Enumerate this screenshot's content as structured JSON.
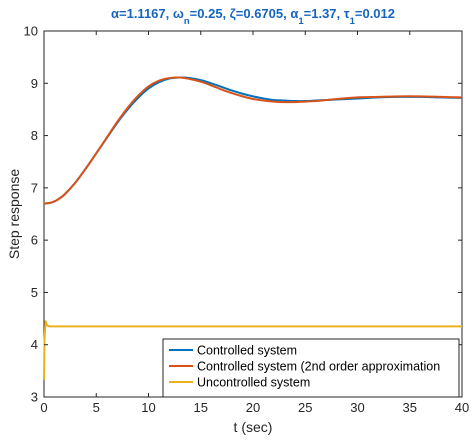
{
  "chart_data": {
    "type": "line",
    "title": "α=1.1167, ωn=0.25, ζ=0.6705, α1=1.37, τ1=0.012",
    "xlabel": "t (sec)",
    "ylabel": "Step response",
    "xlim": [
      0,
      40
    ],
    "ylim": [
      3,
      10
    ],
    "xticks": [
      0,
      5,
      10,
      15,
      20,
      25,
      30,
      35,
      40
    ],
    "yticks": [
      3,
      4,
      5,
      6,
      7,
      8,
      9,
      10
    ],
    "grid": false,
    "legend_position": "bottom-right",
    "series": [
      {
        "name": "Controlled system",
        "color": "#0072bd",
        "x": [
          0,
          0.5,
          1,
          1.5,
          2,
          3,
          4,
          5,
          6,
          7,
          8,
          9,
          10,
          11,
          12,
          13,
          14,
          15,
          16,
          17,
          18,
          19,
          20,
          21,
          22,
          23,
          24,
          25,
          26,
          27,
          28,
          30,
          32,
          34,
          36,
          38,
          40
        ],
        "values": [
          6.7,
          6.71,
          6.74,
          6.8,
          6.88,
          7.1,
          7.37,
          7.66,
          7.95,
          8.24,
          8.5,
          8.72,
          8.9,
          9.02,
          9.09,
          9.11,
          9.1,
          9.06,
          9.0,
          8.93,
          8.86,
          8.8,
          8.75,
          8.71,
          8.68,
          8.67,
          8.66,
          8.66,
          8.67,
          8.68,
          8.69,
          8.71,
          8.73,
          8.74,
          8.74,
          8.73,
          8.72
        ]
      },
      {
        "name": "Controlled system (2nd order approximation",
        "color": "#d95319",
        "x": [
          0,
          0.5,
          1,
          1.5,
          2,
          3,
          4,
          5,
          6,
          7,
          8,
          9,
          10,
          11,
          12,
          13,
          14,
          15,
          16,
          17,
          18,
          19,
          20,
          21,
          22,
          23,
          24,
          25,
          26,
          27,
          28,
          30,
          32,
          34,
          36,
          38,
          40
        ],
        "values": [
          6.7,
          6.71,
          6.74,
          6.8,
          6.88,
          7.1,
          7.37,
          7.66,
          7.96,
          8.26,
          8.53,
          8.76,
          8.94,
          9.05,
          9.1,
          9.11,
          9.08,
          9.03,
          8.96,
          8.88,
          8.81,
          8.75,
          8.7,
          8.67,
          8.65,
          8.64,
          8.64,
          8.65,
          8.66,
          8.68,
          8.7,
          8.73,
          8.74,
          8.75,
          8.75,
          8.74,
          8.73
        ]
      },
      {
        "name": "Uncontrolled system",
        "color": "#edb120",
        "x": [
          0,
          0.05,
          0.15,
          0.3,
          0.5,
          1,
          2,
          5,
          10,
          20,
          30,
          40
        ],
        "values": [
          3.33,
          4.1,
          4.45,
          4.37,
          4.35,
          4.35,
          4.35,
          4.35,
          4.35,
          4.35,
          4.35,
          4.35
        ]
      }
    ]
  }
}
